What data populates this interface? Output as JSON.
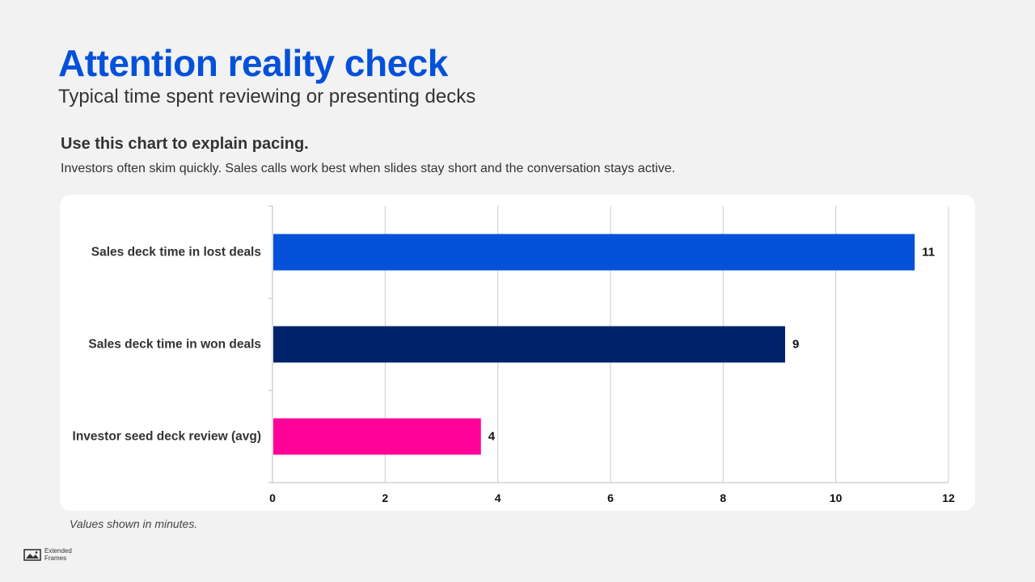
{
  "header": {
    "title": "Attention reality check",
    "subtitle": "Typical time spent reviewing or presenting decks"
  },
  "section": {
    "heading": "Use this chart to explain pacing.",
    "body": "Investors often skim quickly. Sales calls work best when slides stay short and the conversation stays active."
  },
  "chart_data": {
    "type": "bar",
    "orientation": "horizontal",
    "categories": [
      "Sales deck time in lost deals",
      "Sales deck time in won deals",
      "Investor seed deck review (avg)"
    ],
    "values": [
      11.4,
      9.1,
      3.7
    ],
    "value_labels": [
      "11",
      "9",
      "4"
    ],
    "colors": [
      "#0451d9",
      "#00226b",
      "#ff0399"
    ],
    "xlim": [
      0,
      12
    ],
    "x_ticks": [
      0,
      2,
      4,
      6,
      8,
      10,
      12
    ],
    "x_tick_labels": [
      "0",
      "2",
      "4",
      "6",
      "8",
      "10",
      "12"
    ],
    "grid": true,
    "legend": "none"
  },
  "footnote": "Values shown in minutes.",
  "brand": {
    "icon": "image-frame-logo-icon",
    "line1": "Extended",
    "line2": "Frames"
  }
}
